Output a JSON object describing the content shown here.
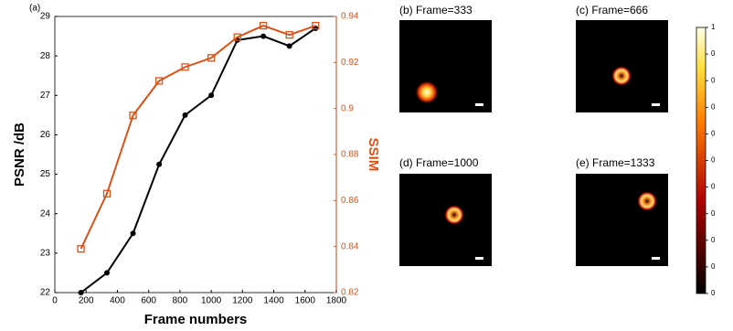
{
  "chart_data": {
    "type": "line",
    "panel_label": "(a)",
    "x_label": "Frame numbers",
    "y_label": "PSNR /dB",
    "y2_label": "SSIM",
    "x": [
      167,
      333,
      500,
      667,
      833,
      1000,
      1167,
      1333,
      1500,
      1667
    ],
    "series": [
      {
        "color": "#000000",
        "marker": "circle",
        "values": [
          22.0,
          22.5,
          23.5,
          25.25,
          26.5,
          27.0,
          28.4,
          28.5,
          28.25,
          28.7
        ]
      },
      {
        "color": "#d95319",
        "marker": "square",
        "axis": "y2",
        "values": [
          0.839,
          0.863,
          0.897,
          0.912,
          0.918,
          0.922,
          0.931,
          0.936,
          0.932,
          0.936
        ]
      }
    ],
    "xlim": [
      0,
      1800
    ],
    "xticks": [
      0,
      200,
      400,
      600,
      800,
      1000,
      1200,
      1400,
      1600,
      1800
    ],
    "ylim": [
      22,
      29
    ],
    "yticks": [
      22,
      23,
      24,
      25,
      26,
      27,
      28,
      29
    ],
    "y2lim": [
      0.82,
      0.94
    ],
    "y2ticks": [
      0.82,
      0.84,
      0.86,
      0.88,
      0.9,
      0.92,
      0.94
    ]
  },
  "panels": [
    {
      "label": "(b)  Frame=333"
    },
    {
      "label": "(c)  Frame=666"
    },
    {
      "label": "(d)  Frame=1000"
    },
    {
      "label": "(e)  Frame=1333"
    }
  ],
  "colorbar": {
    "labels": [
      "1",
      "0",
      "0",
      "0",
      "0",
      "0",
      "0",
      "0",
      "0",
      "0",
      "0"
    ]
  }
}
